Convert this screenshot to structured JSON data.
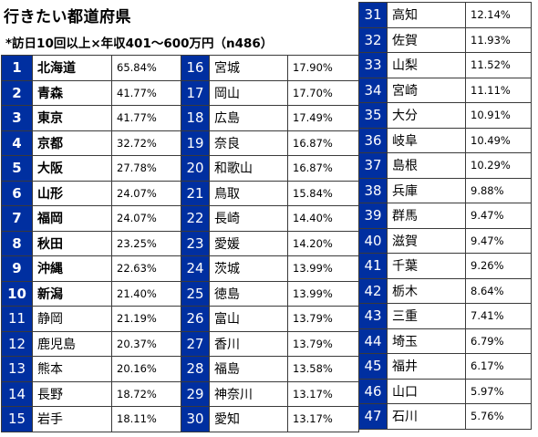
{
  "header": {
    "title": "行きたい都道府県",
    "subtitle": "*訪日10回以上×年収401～600万円（n486）"
  },
  "colors": {
    "rank_bg": "#002fa0",
    "rank_text": "#ffffff",
    "border": "#3a3a3a"
  },
  "columns": [
    [
      {
        "rank": "1",
        "name": "北海道",
        "pct": "65.84%"
      },
      {
        "rank": "2",
        "name": "青森",
        "pct": "41.77%"
      },
      {
        "rank": "3",
        "name": "東京",
        "pct": "41.77%"
      },
      {
        "rank": "4",
        "name": "京都",
        "pct": "32.72%"
      },
      {
        "rank": "5",
        "name": "大阪",
        "pct": "27.78%"
      },
      {
        "rank": "6",
        "name": "山形",
        "pct": "24.07%"
      },
      {
        "rank": "7",
        "name": "福岡",
        "pct": "24.07%"
      },
      {
        "rank": "8",
        "name": "秋田",
        "pct": "23.25%"
      },
      {
        "rank": "9",
        "name": "沖縄",
        "pct": "22.63%"
      },
      {
        "rank": "10",
        "name": "新潟",
        "pct": "21.40%"
      },
      {
        "rank": "11",
        "name": "静岡",
        "pct": "21.19%"
      },
      {
        "rank": "12",
        "name": "鹿児島",
        "pct": "20.37%"
      },
      {
        "rank": "13",
        "name": "熊本",
        "pct": "20.16%"
      },
      {
        "rank": "14",
        "name": "長野",
        "pct": "18.72%"
      },
      {
        "rank": "15",
        "name": "岩手",
        "pct": "18.11%"
      }
    ],
    [
      {
        "rank": "16",
        "name": "宮城",
        "pct": "17.90%"
      },
      {
        "rank": "17",
        "name": "岡山",
        "pct": "17.70%"
      },
      {
        "rank": "18",
        "name": "広島",
        "pct": "17.49%"
      },
      {
        "rank": "19",
        "name": "奈良",
        "pct": "16.87%"
      },
      {
        "rank": "20",
        "name": "和歌山",
        "pct": "16.87%"
      },
      {
        "rank": "21",
        "name": "鳥取",
        "pct": "15.84%"
      },
      {
        "rank": "22",
        "name": "長崎",
        "pct": "14.40%"
      },
      {
        "rank": "23",
        "name": "愛媛",
        "pct": "14.20%"
      },
      {
        "rank": "24",
        "name": "茨城",
        "pct": "13.99%"
      },
      {
        "rank": "25",
        "name": "徳島",
        "pct": "13.99%"
      },
      {
        "rank": "26",
        "name": "富山",
        "pct": "13.79%"
      },
      {
        "rank": "27",
        "name": "香川",
        "pct": "13.79%"
      },
      {
        "rank": "28",
        "name": "福島",
        "pct": "13.58%"
      },
      {
        "rank": "29",
        "name": "神奈川",
        "pct": "13.17%"
      },
      {
        "rank": "30",
        "name": "愛知",
        "pct": "13.17%"
      }
    ],
    [
      {
        "rank": "31",
        "name": "高知",
        "pct": "12.14%"
      },
      {
        "rank": "32",
        "name": "佐賀",
        "pct": "11.93%"
      },
      {
        "rank": "33",
        "name": "山梨",
        "pct": "11.52%"
      },
      {
        "rank": "34",
        "name": "宮崎",
        "pct": "11.11%"
      },
      {
        "rank": "35",
        "name": "大分",
        "pct": "10.91%"
      },
      {
        "rank": "36",
        "name": "岐阜",
        "pct": "10.49%"
      },
      {
        "rank": "37",
        "name": "島根",
        "pct": "10.29%"
      },
      {
        "rank": "38",
        "name": "兵庫",
        "pct": "9.88%"
      },
      {
        "rank": "39",
        "name": "群馬",
        "pct": "9.47%"
      },
      {
        "rank": "40",
        "name": "滋賀",
        "pct": "9.47%"
      },
      {
        "rank": "41",
        "name": "千葉",
        "pct": "9.26%"
      },
      {
        "rank": "42",
        "name": "栃木",
        "pct": "8.64%"
      },
      {
        "rank": "43",
        "name": "三重",
        "pct": "7.41%"
      },
      {
        "rank": "44",
        "name": "埼玉",
        "pct": "6.79%"
      },
      {
        "rank": "45",
        "name": "福井",
        "pct": "6.17%"
      },
      {
        "rank": "46",
        "name": "山口",
        "pct": "5.97%"
      },
      {
        "rank": "47",
        "name": "石川",
        "pct": "5.76%"
      }
    ]
  ]
}
